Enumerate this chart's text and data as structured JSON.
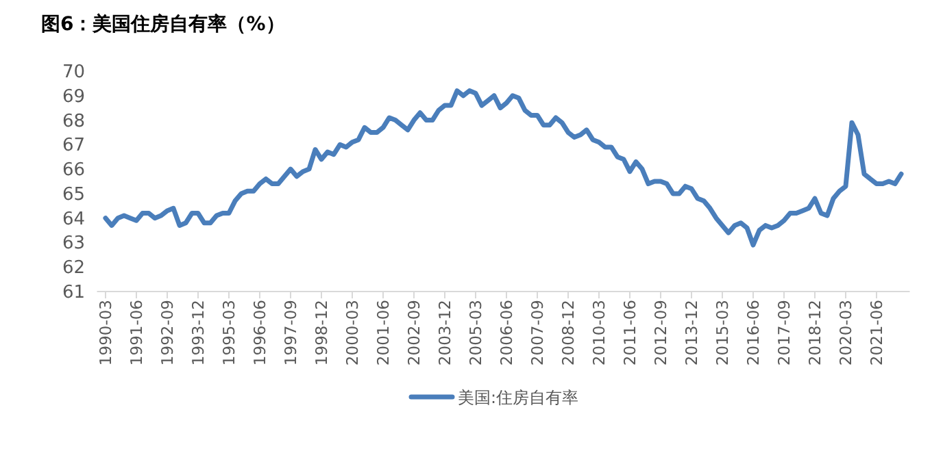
{
  "chart_data": {
    "type": "line",
    "title": "图6：美国住房自有率（%）",
    "categories": [
      "1990-03",
      null,
      null,
      null,
      null,
      "1991-06",
      null,
      null,
      null,
      null,
      "1992-09",
      null,
      null,
      null,
      null,
      "1993-12",
      null,
      null,
      null,
      null,
      "1995-03",
      null,
      null,
      null,
      null,
      "1996-06",
      null,
      null,
      null,
      null,
      "1997-09",
      null,
      null,
      null,
      null,
      "1998-12",
      null,
      null,
      null,
      null,
      "2000-03",
      null,
      null,
      null,
      null,
      "2001-06",
      null,
      null,
      null,
      null,
      "2002-09",
      null,
      null,
      null,
      null,
      "2003-12",
      null,
      null,
      null,
      null,
      "2005-03",
      null,
      null,
      null,
      null,
      "2006-06",
      null,
      null,
      null,
      null,
      "2007-09",
      null,
      null,
      null,
      null,
      "2008-12",
      null,
      null,
      null,
      null,
      "2010-03",
      null,
      null,
      null,
      null,
      "2011-06",
      null,
      null,
      null,
      null,
      "2012-09",
      null,
      null,
      null,
      null,
      "2013-12",
      null,
      null,
      null,
      null,
      "2015-03",
      null,
      null,
      null,
      null,
      "2016-06",
      null,
      null,
      null,
      null,
      "2017-09",
      null,
      null,
      null,
      null,
      "2018-12",
      null,
      null,
      null,
      null,
      "2020-03",
      null,
      null,
      null,
      null,
      "2021-06",
      null,
      null,
      null,
      null
    ],
    "series": [
      {
        "name": "美国:住房自有率",
        "color": "#4a7ebb",
        "values": [
          64.0,
          63.7,
          64.0,
          64.1,
          64.0,
          63.9,
          64.2,
          64.2,
          64.0,
          64.1,
          64.3,
          64.4,
          63.7,
          63.8,
          64.2,
          64.2,
          63.8,
          63.8,
          64.1,
          64.2,
          64.2,
          64.7,
          65.0,
          65.1,
          65.1,
          65.4,
          65.6,
          65.4,
          65.4,
          65.7,
          66.0,
          65.7,
          65.9,
          66.0,
          66.8,
          66.4,
          66.7,
          66.6,
          67.0,
          66.9,
          67.1,
          67.2,
          67.7,
          67.5,
          67.5,
          67.7,
          68.1,
          68.0,
          67.8,
          67.6,
          68.0,
          68.3,
          68.0,
          68.0,
          68.4,
          68.6,
          68.6,
          69.2,
          69.0,
          69.2,
          69.1,
          68.6,
          68.8,
          69.0,
          68.5,
          68.7,
          69.0,
          68.9,
          68.4,
          68.2,
          68.2,
          67.8,
          67.8,
          68.1,
          67.9,
          67.5,
          67.3,
          67.4,
          67.6,
          67.2,
          67.1,
          66.9,
          66.9,
          66.5,
          66.4,
          65.9,
          66.3,
          66.0,
          65.4,
          65.5,
          65.5,
          65.4,
          65.0,
          65.0,
          65.3,
          65.2,
          64.8,
          64.7,
          64.4,
          64.0,
          63.7,
          63.4,
          63.7,
          63.8,
          63.6,
          62.9,
          63.5,
          63.7,
          63.6,
          63.7,
          63.9,
          64.2,
          64.2,
          64.3,
          64.4,
          64.8,
          64.2,
          64.1,
          64.8,
          65.1,
          65.3,
          67.9,
          67.4,
          65.8,
          65.6,
          65.4,
          65.4,
          65.5,
          65.4,
          65.8
        ]
      }
    ],
    "ylim": [
      61,
      70
    ],
    "yticks": [
      61,
      62,
      63,
      64,
      65,
      66,
      67,
      68,
      69,
      70
    ],
    "legend": "bottom"
  }
}
